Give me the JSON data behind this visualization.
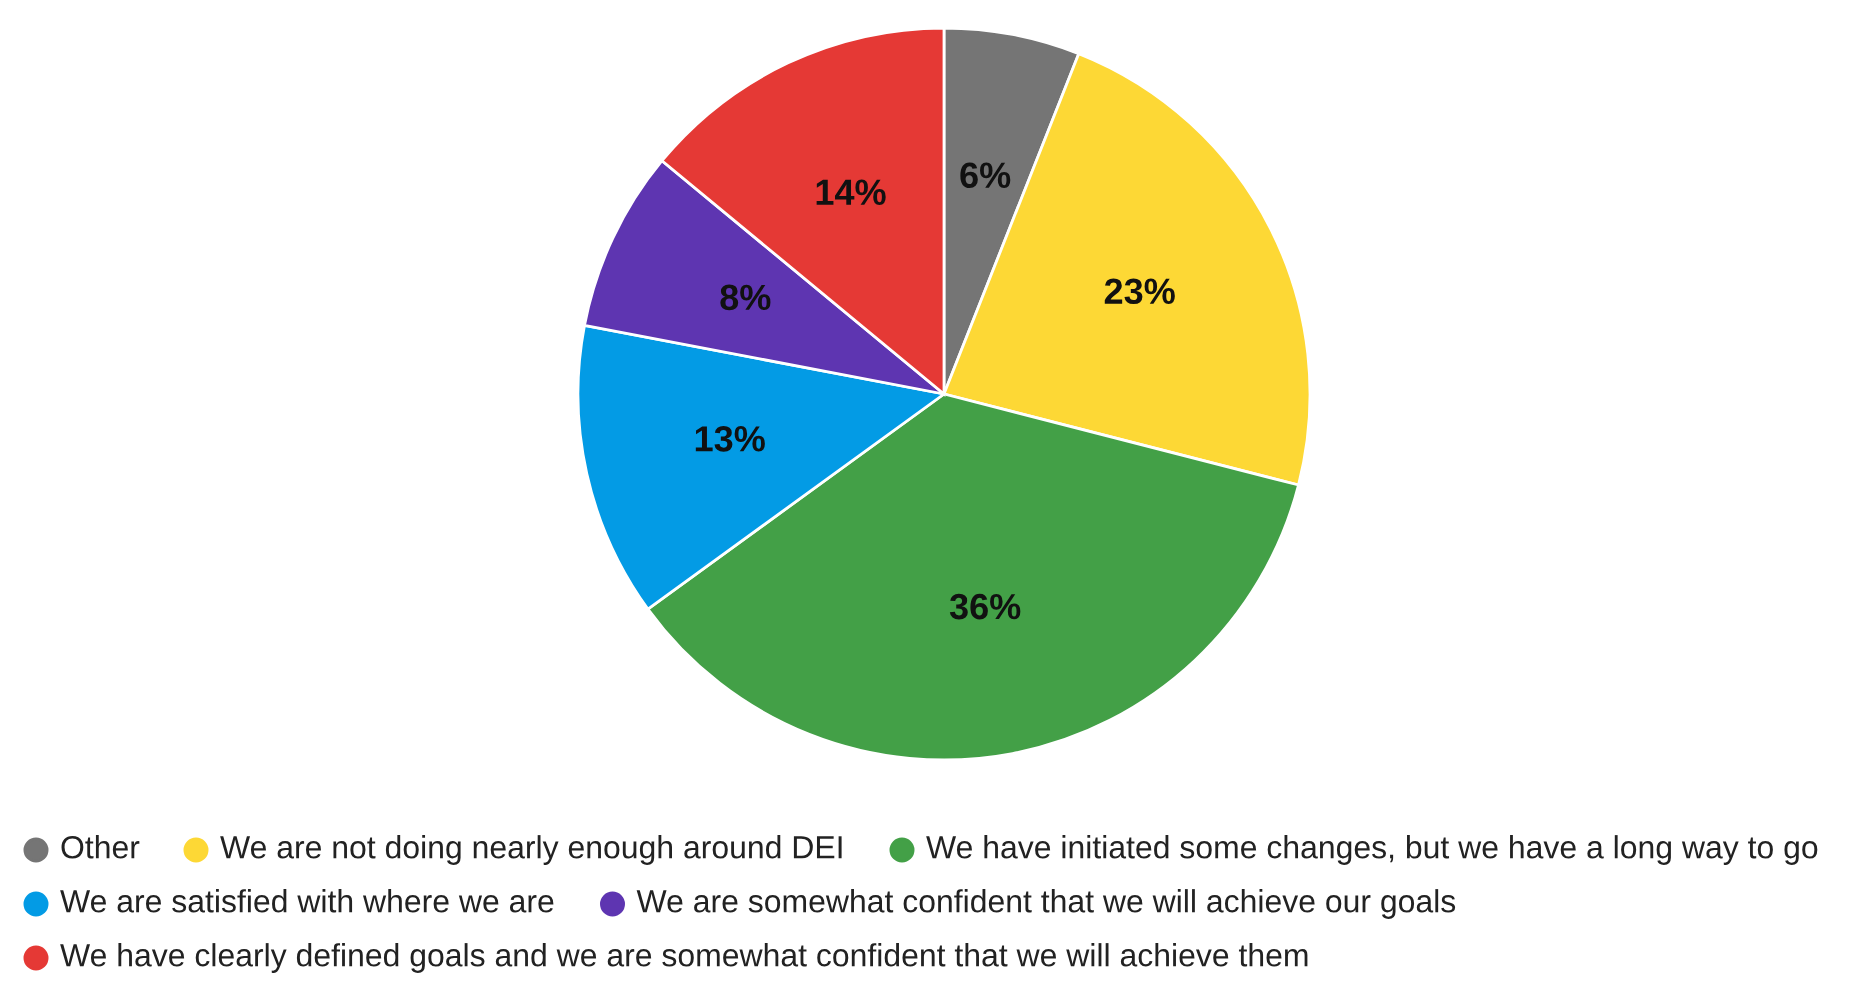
{
  "chart_data": {
    "type": "pie",
    "categories": [
      "Other",
      "We are not doing nearly enough around DEI",
      "We have initiated some changes, but we have a long way to go",
      "We are satisfied with where we are",
      "We are somewhat confident that we will achieve our goals",
      "We have clearly defined goals and we are somewhat confident that we will achieve them"
    ],
    "values": [
      6,
      23,
      36,
      13,
      8,
      14
    ],
    "colors": [
      "#757575",
      "#fdd835",
      "#43a047",
      "#039be5",
      "#5e35b1",
      "#e53935"
    ],
    "value_labels": [
      "6%",
      "23%",
      "36%",
      "13%",
      "8%",
      "14%"
    ],
    "legend": "bottom"
  }
}
